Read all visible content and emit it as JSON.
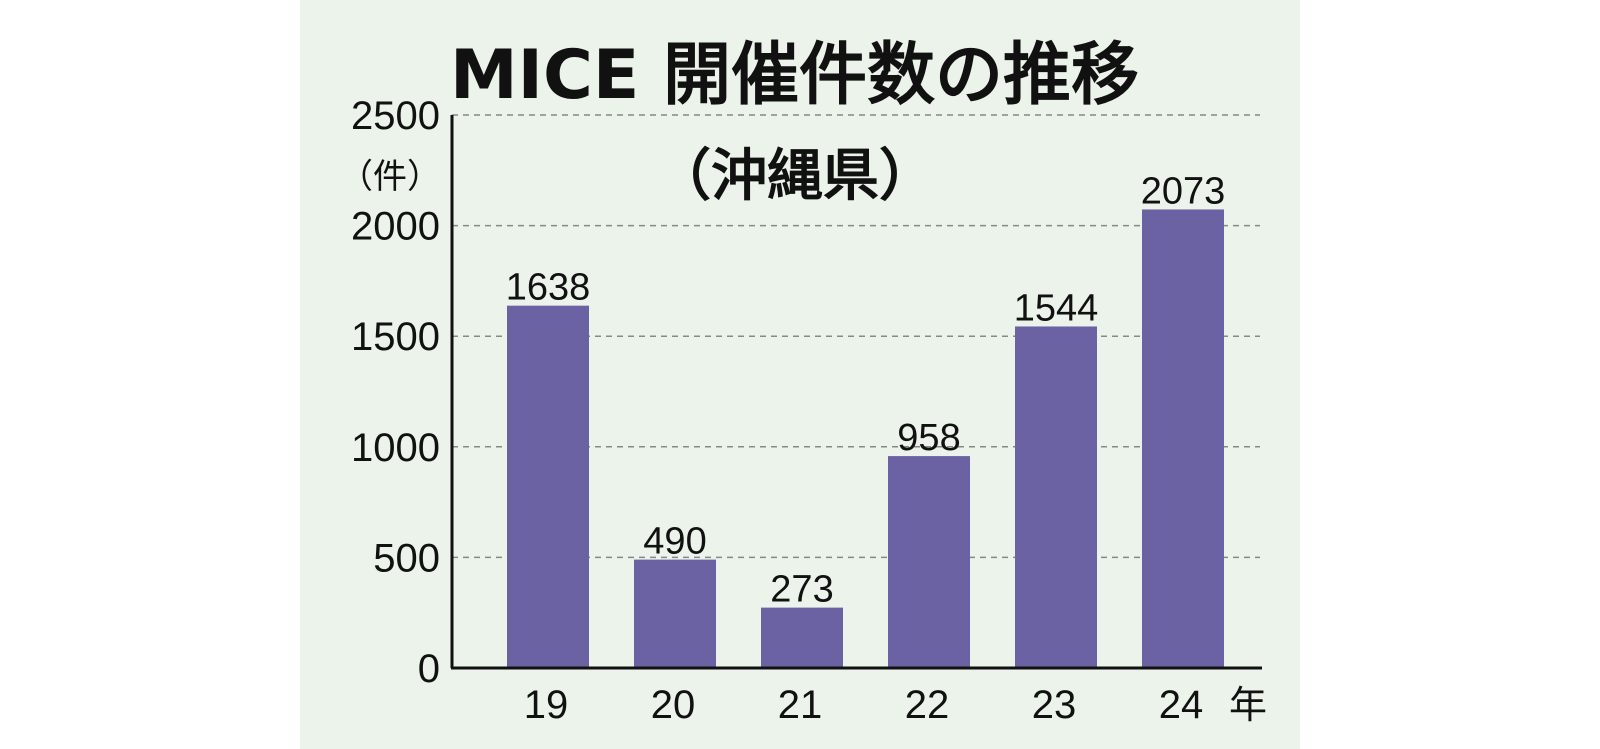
{
  "chart_data": {
    "type": "bar",
    "title": "MICE 開催件数の推移",
    "subtitle": "（沖縄県）",
    "ylabel": "（件）",
    "x_unit": "年",
    "categories": [
      "19",
      "20",
      "21",
      "22",
      "23",
      "24"
    ],
    "values": [
      1638,
      490,
      273,
      958,
      1544,
      2073
    ],
    "ylim": [
      0,
      2500
    ],
    "yticks": [
      "0",
      "500",
      "1000",
      "1500",
      "2000",
      "2500"
    ],
    "grid": true,
    "colors": {
      "bar": "#6a62a3",
      "background": "#ebf3ea",
      "grid": "#888888"
    }
  }
}
